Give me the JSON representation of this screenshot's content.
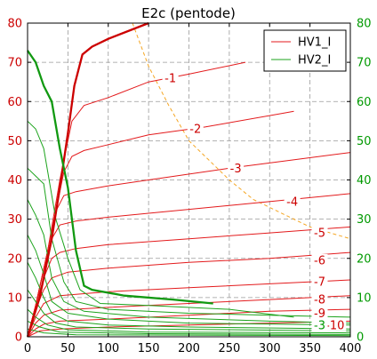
{
  "chart_data": {
    "type": "line",
    "title": "E2c (pentode)",
    "xlabel": "",
    "ylabel_left": "",
    "ylabel_right": "",
    "xlim": [
      0,
      400
    ],
    "ylim_left": [
      0,
      80
    ],
    "ylim_right": [
      0,
      80
    ],
    "x_ticks": [
      "0",
      "50",
      "100",
      "150",
      "200",
      "250",
      "300",
      "350",
      "400"
    ],
    "y_ticks_left": [
      "0",
      "10",
      "20",
      "30",
      "40",
      "50",
      "60",
      "70",
      "80"
    ],
    "y_ticks_right": [
      "0",
      "10",
      "20",
      "30",
      "40",
      "50",
      "60",
      "70",
      "80"
    ],
    "grid": true,
    "legend_position": "top-right",
    "colors": {
      "hv1": "#e31a1c",
      "hv1_bold": "#cc0000",
      "hv2": "#1ca31c",
      "hv2_bold": "#119911",
      "dissipation": "#f5a623",
      "left_axis": "#cc0000",
      "right_axis": "#009900"
    },
    "legend": [
      {
        "name": "HV1_I",
        "color": "#e31a1c"
      },
      {
        "name": "HV2_I",
        "color": "#1ca31c"
      }
    ],
    "series": [
      {
        "group": "HV1_I",
        "label": "-1",
        "bold": false,
        "points": [
          [
            0,
            0
          ],
          [
            10,
            8
          ],
          [
            25,
            22
          ],
          [
            40,
            40
          ],
          [
            55,
            55
          ],
          [
            70,
            59
          ],
          [
            100,
            61
          ],
          [
            150,
            65
          ],
          [
            200,
            67
          ],
          [
            270,
            70
          ]
        ]
      },
      {
        "group": "HV1_I",
        "label": "-2",
        "bold": false,
        "points": [
          [
            0,
            0
          ],
          [
            10,
            8
          ],
          [
            25,
            22
          ],
          [
            35,
            32
          ],
          [
            45,
            42
          ],
          [
            55,
            46
          ],
          [
            70,
            47.5
          ],
          [
            100,
            49
          ],
          [
            150,
            51.5
          ],
          [
            220,
            53.5
          ],
          [
            330,
            57.5
          ]
        ]
      },
      {
        "group": "HV1_I",
        "label": "-3",
        "bold": false,
        "points": [
          [
            0,
            0
          ],
          [
            10,
            8
          ],
          [
            25,
            22
          ],
          [
            35,
            32
          ],
          [
            45,
            36
          ],
          [
            60,
            37
          ],
          [
            100,
            38.5
          ],
          [
            150,
            40
          ],
          [
            250,
            43
          ],
          [
            400,
            47
          ]
        ]
      },
      {
        "group": "HV1_I",
        "label": "-4",
        "bold": false,
        "points": [
          [
            0,
            0
          ],
          [
            10,
            8
          ],
          [
            20,
            17
          ],
          [
            30,
            25
          ],
          [
            40,
            28.5
          ],
          [
            60,
            29.5
          ],
          [
            100,
            30.5
          ],
          [
            150,
            31.5
          ],
          [
            250,
            33.5
          ],
          [
            400,
            36.5
          ]
        ]
      },
      {
        "group": "HV1_I",
        "label": "-5",
        "bold": false,
        "points": [
          [
            0,
            0
          ],
          [
            10,
            8
          ],
          [
            20,
            15
          ],
          [
            30,
            20
          ],
          [
            40,
            21.5
          ],
          [
            60,
            22.5
          ],
          [
            100,
            23.5
          ],
          [
            200,
            25
          ],
          [
            300,
            26.5
          ],
          [
            400,
            28
          ]
        ]
      },
      {
        "group": "HV1_I",
        "label": "-6",
        "bold": false,
        "points": [
          [
            0,
            0
          ],
          [
            10,
            7
          ],
          [
            20,
            12
          ],
          [
            30,
            15
          ],
          [
            50,
            16.5
          ],
          [
            100,
            17.5
          ],
          [
            200,
            19
          ],
          [
            300,
            20
          ],
          [
            400,
            21.5
          ]
        ]
      },
      {
        "group": "HV1_I",
        "label": "-7",
        "bold": false,
        "points": [
          [
            0,
            0
          ],
          [
            10,
            5
          ],
          [
            20,
            8.5
          ],
          [
            40,
            10.5
          ],
          [
            100,
            11.5
          ],
          [
            200,
            12.5
          ],
          [
            300,
            13.5
          ],
          [
            400,
            14.5
          ]
        ]
      },
      {
        "group": "HV1_I",
        "label": "-8",
        "bold": false,
        "points": [
          [
            0,
            0
          ],
          [
            10,
            3.5
          ],
          [
            20,
            5.5
          ],
          [
            40,
            6.8
          ],
          [
            100,
            7.5
          ],
          [
            200,
            8.5
          ],
          [
            300,
            9.5
          ],
          [
            400,
            10.5
          ]
        ]
      },
      {
        "group": "HV1_I",
        "label": "-9",
        "bold": false,
        "points": [
          [
            0,
            0
          ],
          [
            10,
            2
          ],
          [
            20,
            3.2
          ],
          [
            40,
            4
          ],
          [
            100,
            4.5
          ],
          [
            200,
            5.5
          ],
          [
            300,
            6.5
          ],
          [
            400,
            7
          ]
        ]
      },
      {
        "group": "HV1_I",
        "label": "-10",
        "bold": false,
        "points": [
          [
            0,
            0
          ],
          [
            15,
            1.5
          ],
          [
            40,
            2
          ],
          [
            100,
            2.5
          ],
          [
            200,
            3
          ],
          [
            300,
            3.5
          ],
          [
            400,
            4
          ]
        ]
      },
      {
        "group": "HV1_I",
        "label": "",
        "bold": true,
        "points": [
          [
            0,
            0
          ],
          [
            15,
            10
          ],
          [
            30,
            25
          ],
          [
            40,
            38
          ],
          [
            50,
            52
          ],
          [
            58,
            64
          ],
          [
            68,
            72
          ],
          [
            80,
            74
          ],
          [
            100,
            76
          ],
          [
            150,
            80
          ]
        ]
      },
      {
        "group": "HV2_I",
        "label": "",
        "bold": false,
        "points": [
          [
            0,
            55
          ],
          [
            10,
            53
          ],
          [
            20,
            48
          ],
          [
            35,
            30
          ],
          [
            50,
            20
          ],
          [
            65,
            12
          ],
          [
            90,
            8.5
          ],
          [
            150,
            8
          ],
          [
            250,
            7
          ],
          [
            330,
            5
          ]
        ]
      },
      {
        "group": "HV2_I",
        "label": "",
        "bold": false,
        "points": [
          [
            0,
            43
          ],
          [
            10,
            41
          ],
          [
            20,
            39
          ],
          [
            30,
            25
          ],
          [
            45,
            14
          ],
          [
            60,
            9
          ],
          [
            100,
            7
          ],
          [
            200,
            6
          ],
          [
            300,
            5.5
          ],
          [
            400,
            5
          ]
        ]
      },
      {
        "group": "HV2_I",
        "label": "",
        "bold": false,
        "points": [
          [
            0,
            35
          ],
          [
            10,
            31
          ],
          [
            20,
            26
          ],
          [
            30,
            15
          ],
          [
            45,
            9
          ],
          [
            70,
            6.5
          ],
          [
            150,
            5
          ],
          [
            300,
            4
          ],
          [
            400,
            3.5
          ]
        ]
      },
      {
        "group": "HV2_I",
        "label": "",
        "bold": false,
        "points": [
          [
            0,
            26
          ],
          [
            10,
            22
          ],
          [
            20,
            16
          ],
          [
            30,
            9
          ],
          [
            50,
            6
          ],
          [
            100,
            4.5
          ],
          [
            200,
            3.5
          ],
          [
            400,
            3
          ]
        ]
      },
      {
        "group": "HV2_I",
        "label": "",
        "bold": false,
        "points": [
          [
            0,
            19
          ],
          [
            10,
            15
          ],
          [
            20,
            10
          ],
          [
            30,
            6
          ],
          [
            50,
            4
          ],
          [
            100,
            3
          ],
          [
            200,
            2.5
          ],
          [
            400,
            2
          ]
        ]
      },
      {
        "group": "HV2_I",
        "label": "",
        "bold": false,
        "points": [
          [
            0,
            12
          ],
          [
            10,
            9
          ],
          [
            20,
            6
          ],
          [
            35,
            3.5
          ],
          [
            60,
            2.5
          ],
          [
            150,
            2
          ],
          [
            400,
            1.5
          ]
        ]
      },
      {
        "group": "HV2_I",
        "label": "",
        "bold": false,
        "points": [
          [
            0,
            7
          ],
          [
            10,
            5
          ],
          [
            25,
            3
          ],
          [
            50,
            1.8
          ],
          [
            150,
            1.2
          ],
          [
            400,
            1
          ]
        ]
      },
      {
        "group": "HV2_I",
        "label": "",
        "bold": false,
        "points": [
          [
            0,
            4
          ],
          [
            15,
            2.5
          ],
          [
            40,
            1.2
          ],
          [
            150,
            0.8
          ],
          [
            400,
            0.6
          ]
        ]
      },
      {
        "group": "HV2_I",
        "label": "",
        "bold": false,
        "points": [
          [
            0,
            2
          ],
          [
            20,
            1
          ],
          [
            60,
            0.5
          ],
          [
            400,
            0.3
          ]
        ]
      },
      {
        "group": "HV2_I",
        "label": "",
        "bold": true,
        "points": [
          [
            0,
            73
          ],
          [
            10,
            70
          ],
          [
            20,
            64
          ],
          [
            30,
            60
          ],
          [
            40,
            48
          ],
          [
            50,
            38
          ],
          [
            60,
            22
          ],
          [
            70,
            13
          ],
          [
            80,
            12
          ],
          [
            120,
            10.5
          ],
          [
            180,
            9.5
          ],
          [
            230,
            8.5
          ]
        ]
      }
    ],
    "dissipation_curve": {
      "label": "",
      "points": [
        [
          130,
          80
        ],
        [
          150,
          69
        ],
        [
          175,
          59
        ],
        [
          200,
          50
        ],
        [
          225,
          45
        ],
        [
          250,
          40
        ],
        [
          280,
          35
        ],
        [
          310,
          32
        ],
        [
          350,
          28
        ],
        [
          400,
          25
        ]
      ]
    },
    "annotations": [
      {
        "text": "-1",
        "x": 177,
        "y": 66,
        "color": "#cc0000"
      },
      {
        "text": "-2",
        "x": 208,
        "y": 53,
        "color": "#cc0000"
      },
      {
        "text": "-3",
        "x": 258,
        "y": 43,
        "color": "#cc0000"
      },
      {
        "text": "-4",
        "x": 328,
        "y": 34.5,
        "color": "#cc0000"
      },
      {
        "text": "-5",
        "x": 362,
        "y": 26.5,
        "color": "#cc0000"
      },
      {
        "text": "-6",
        "x": 362,
        "y": 19.5,
        "color": "#cc0000"
      },
      {
        "text": "-7",
        "x": 362,
        "y": 14,
        "color": "#cc0000"
      },
      {
        "text": "-8",
        "x": 362,
        "y": 9.5,
        "color": "#cc0000"
      },
      {
        "text": "-9",
        "x": 362,
        "y": 6,
        "color": "#cc0000"
      },
      {
        "text": "-10",
        "x": 381,
        "y": 3,
        "color": "#cc0000"
      },
      {
        "text": "-3",
        "x": 362,
        "y": 3,
        "color": "#009900"
      }
    ]
  }
}
